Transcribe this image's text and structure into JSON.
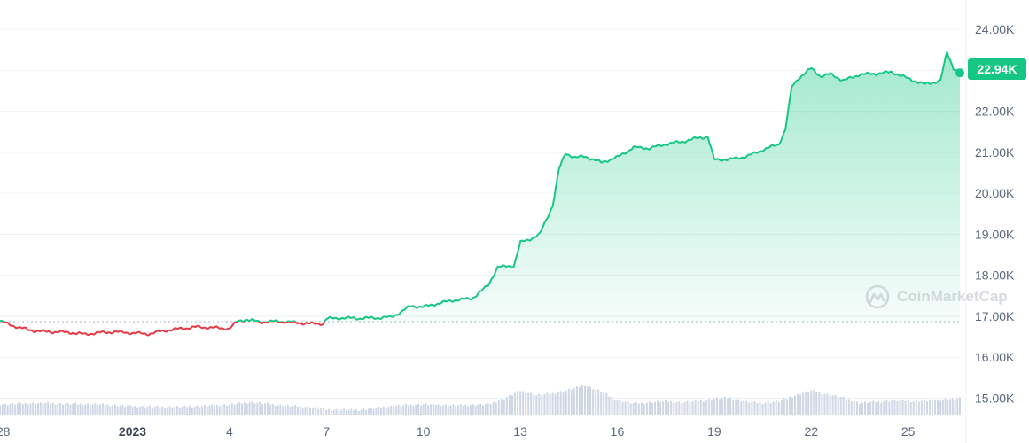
{
  "watermark": {
    "text": "CoinMarketCap",
    "icon": "coinmarketcap-logo-icon"
  },
  "colors": {
    "up": "#16c784",
    "down": "#ea3943",
    "volume": "#cfd6e4",
    "grid": "#eff2f5"
  },
  "chart_data": {
    "type": "line",
    "title": "",
    "xlabel": "",
    "ylabel": "",
    "y_ticks": [
      {
        "value": 15000,
        "label": "15.00K"
      },
      {
        "value": 16000,
        "label": "16.00K"
      },
      {
        "value": 17000,
        "label": "17.00K"
      },
      {
        "value": 18000,
        "label": "18.00K"
      },
      {
        "value": 19000,
        "label": "19.00K"
      },
      {
        "value": 20000,
        "label": "20.00K"
      },
      {
        "value": 21000,
        "label": "21.00K"
      },
      {
        "value": 22000,
        "label": "22.00K"
      },
      {
        "value": 23000,
        "label": "23.00K"
      },
      {
        "value": 24000,
        "label": "24.00K"
      }
    ],
    "x_ticks": [
      {
        "day": 0,
        "label": "28"
      },
      {
        "day": 4,
        "label": "2023",
        "bold": true
      },
      {
        "day": 7,
        "label": "4"
      },
      {
        "day": 10,
        "label": "7"
      },
      {
        "day": 13,
        "label": "10"
      },
      {
        "day": 16,
        "label": "13"
      },
      {
        "day": 19,
        "label": "16"
      },
      {
        "day": 22,
        "label": "19"
      },
      {
        "day": 25,
        "label": "22"
      },
      {
        "day": 28,
        "label": "25"
      }
    ],
    "xlim": [
      -0.1,
      29.6
    ],
    "ylim": [
      14600,
      24500
    ],
    "reference_price": 16870,
    "last_price": {
      "value": 22940,
      "label": "22.94K"
    },
    "price": [
      [
        -0.1,
        16880
      ],
      [
        0.5,
        16720
      ],
      [
        1.0,
        16640
      ],
      [
        1.5,
        16620
      ],
      [
        2.0,
        16610
      ],
      [
        2.5,
        16560
      ],
      [
        3.0,
        16600
      ],
      [
        3.5,
        16620
      ],
      [
        4.0,
        16590
      ],
      [
        4.5,
        16570
      ],
      [
        5.0,
        16650
      ],
      [
        5.5,
        16700
      ],
      [
        6.0,
        16740
      ],
      [
        6.5,
        16720
      ],
      [
        7.0,
        16700
      ],
      [
        7.25,
        16880
      ],
      [
        7.5,
        16920
      ],
      [
        8.0,
        16860
      ],
      [
        8.5,
        16880
      ],
      [
        9.0,
        16850
      ],
      [
        9.5,
        16820
      ],
      [
        9.9,
        16820
      ],
      [
        10.0,
        16940
      ],
      [
        10.5,
        16960
      ],
      [
        11.0,
        16950
      ],
      [
        11.5,
        16960
      ],
      [
        12.0,
        16980
      ],
      [
        12.3,
        17100
      ],
      [
        12.6,
        17250
      ],
      [
        13.0,
        17230
      ],
      [
        13.5,
        17320
      ],
      [
        14.0,
        17400
      ],
      [
        14.5,
        17430
      ],
      [
        15.0,
        17750
      ],
      [
        15.3,
        18200
      ],
      [
        15.8,
        18230
      ],
      [
        16.0,
        18800
      ],
      [
        16.3,
        18880
      ],
      [
        16.6,
        19000
      ],
      [
        17.0,
        19700
      ],
      [
        17.2,
        20600
      ],
      [
        17.4,
        20980
      ],
      [
        17.7,
        20870
      ],
      [
        18.0,
        20900
      ],
      [
        18.5,
        20750
      ],
      [
        19.0,
        20880
      ],
      [
        19.5,
        21120
      ],
      [
        20.0,
        21100
      ],
      [
        20.5,
        21200
      ],
      [
        21.0,
        21260
      ],
      [
        21.5,
        21350
      ],
      [
        21.8,
        21380
      ],
      [
        22.0,
        20820
      ],
      [
        22.5,
        20830
      ],
      [
        23.0,
        20900
      ],
      [
        23.5,
        21060
      ],
      [
        24.0,
        21200
      ],
      [
        24.2,
        21550
      ],
      [
        24.4,
        22600
      ],
      [
        24.6,
        22800
      ],
      [
        25.0,
        23050
      ],
      [
        25.3,
        22850
      ],
      [
        25.6,
        22910
      ],
      [
        26.0,
        22750
      ],
      [
        26.5,
        22900
      ],
      [
        27.0,
        22920
      ],
      [
        27.5,
        22960
      ],
      [
        28.0,
        22800
      ],
      [
        28.5,
        22660
      ],
      [
        29.0,
        22750
      ],
      [
        29.2,
        23440
      ],
      [
        29.4,
        23060
      ],
      [
        29.6,
        22940
      ]
    ],
    "volume_ylim": [
      0,
      300
    ],
    "volume": [
      [
        -0.1,
        45
      ],
      [
        1,
        50
      ],
      [
        2,
        47
      ],
      [
        3,
        44
      ],
      [
        4,
        37
      ],
      [
        5,
        33
      ],
      [
        6,
        36
      ],
      [
        7,
        44
      ],
      [
        7.7,
        54
      ],
      [
        8.5,
        42
      ],
      [
        9.5,
        33
      ],
      [
        10,
        22
      ],
      [
        11,
        20
      ],
      [
        12,
        37
      ],
      [
        13,
        45
      ],
      [
        14,
        40
      ],
      [
        15,
        44
      ],
      [
        15.5,
        70
      ],
      [
        16,
        104
      ],
      [
        16.5,
        85
      ],
      [
        17,
        92
      ],
      [
        17.5,
        108
      ],
      [
        18,
        128
      ],
      [
        18.5,
        100
      ],
      [
        19,
        62
      ],
      [
        19.5,
        49
      ],
      [
        20,
        53
      ],
      [
        20.5,
        58
      ],
      [
        21,
        53
      ],
      [
        21.5,
        58
      ],
      [
        22,
        70
      ],
      [
        22.5,
        73
      ],
      [
        23,
        55
      ],
      [
        23.5,
        51
      ],
      [
        24,
        58
      ],
      [
        24.5,
        84
      ],
      [
        25,
        104
      ],
      [
        25.5,
        88
      ],
      [
        26,
        73
      ],
      [
        26.5,
        51
      ],
      [
        27,
        55
      ],
      [
        27.5,
        61
      ],
      [
        28,
        59
      ],
      [
        28.5,
        59
      ],
      [
        29,
        65
      ],
      [
        29.6,
        70
      ]
    ]
  }
}
